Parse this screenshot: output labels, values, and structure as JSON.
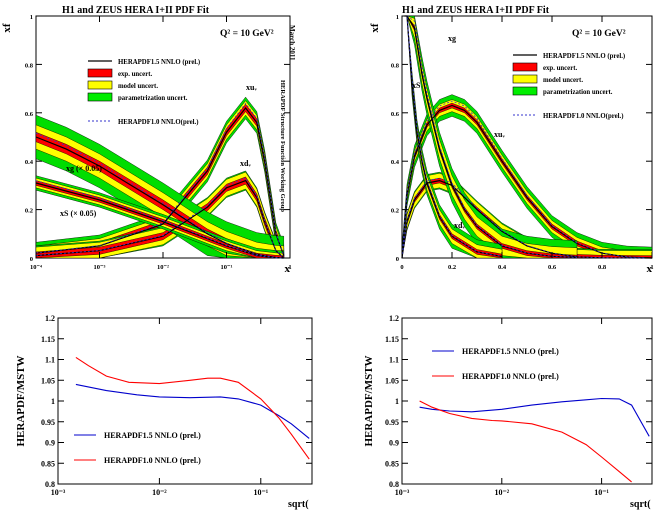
{
  "chart_data": [
    {
      "type": "line",
      "title": "H1 and ZEUS HERA I+II PDF Fit",
      "q2_label": "Q² = 10 GeV²",
      "side_label": "March 2011",
      "vertical_note": "HERAPDF Structure Function Working Group",
      "xlabel": "x",
      "ylabel": "xf",
      "xscale": "log",
      "xlim": [
        0.0001,
        1
      ],
      "ylim": [
        0,
        1
      ],
      "xticks": [
        {
          "v": 0.0001,
          "label": "10⁻⁴"
        },
        {
          "v": 0.001,
          "label": "10⁻³"
        },
        {
          "v": 0.01,
          "label": "10⁻²"
        },
        {
          "v": 0.1,
          "label": "10⁻¹"
        },
        {
          "v": 1,
          "label": "1"
        }
      ],
      "yticks": [
        {
          "v": 0,
          "label": "0"
        },
        {
          "v": 0.2,
          "label": "0.2"
        },
        {
          "v": 0.4,
          "label": "0.4"
        },
        {
          "v": 0.6,
          "label": "0.6"
        },
        {
          "v": 0.8,
          "label": "0.8"
        },
        {
          "v": 1,
          "label": "1"
        }
      ],
      "legend": [
        "HERAPDF1.5 NNLO (prel.)",
        "exp. uncert.",
        "model uncert.",
        "parametrization uncert.",
        "HERAPDF1.0 NNLO(prel.)"
      ],
      "legend_colors": [
        "#000000",
        "#ff0000",
        "#ffff00",
        "#00ee00",
        "#3333cc"
      ],
      "series": [
        {
          "name": "xu_v",
          "label": "xuᵥ",
          "x": [
            0.0001,
            0.001,
            0.01,
            0.05,
            0.1,
            0.2,
            0.3,
            0.4,
            0.6,
            0.8
          ],
          "values": [
            0.02,
            0.05,
            0.14,
            0.36,
            0.52,
            0.62,
            0.56,
            0.4,
            0.1,
            0.01
          ],
          "bands": [
            0.015,
            0.03,
            0.045
          ]
        },
        {
          "name": "xd_v",
          "label": "xdᵥ",
          "x": [
            0.0001,
            0.001,
            0.01,
            0.05,
            0.1,
            0.2,
            0.3,
            0.4,
            0.6,
            0.8
          ],
          "values": [
            0.01,
            0.03,
            0.09,
            0.21,
            0.29,
            0.32,
            0.25,
            0.15,
            0.03,
            0.0
          ],
          "bands": [
            0.015,
            0.035,
            0.04
          ]
        },
        {
          "name": "xg",
          "label": "xg (× 0.05)",
          "x": [
            0.0001,
            0.0003,
            0.001,
            0.01,
            0.05,
            0.1,
            0.3,
            0.6,
            0.8
          ],
          "values": [
            0.5,
            0.45,
            0.38,
            0.22,
            0.1,
            0.06,
            0.015,
            0.002,
            0.0
          ],
          "bands": [
            0.02,
            0.05,
            0.09
          ]
        },
        {
          "name": "xS",
          "label": "xS (× 0.05)",
          "x": [
            0.0001,
            0.001,
            0.01,
            0.05,
            0.1,
            0.3,
            0.6,
            0.8
          ],
          "values": [
            0.31,
            0.24,
            0.15,
            0.08,
            0.05,
            0.01,
            0.001,
            0.0
          ],
          "bands": [
            0.01,
            0.02,
            0.03
          ]
        }
      ]
    },
    {
      "type": "line",
      "title": "H1 and ZEUS HERA I+II PDF Fit",
      "q2_label": "Q² = 10 GeV²",
      "xlabel": "x",
      "ylabel": "xf",
      "xscale": "linear",
      "xlim": [
        0,
        1
      ],
      "ylim": [
        0,
        1
      ],
      "xticks": [
        {
          "v": 0,
          "label": "0"
        },
        {
          "v": 0.2,
          "label": "0.2"
        },
        {
          "v": 0.4,
          "label": "0.4"
        },
        {
          "v": 0.6,
          "label": "0.6"
        },
        {
          "v": 0.8,
          "label": "0.8"
        },
        {
          "v": 1,
          "label": "1"
        }
      ],
      "yticks": [
        {
          "v": 0,
          "label": "0"
        },
        {
          "v": 0.2,
          "label": "0.2"
        },
        {
          "v": 0.4,
          "label": "0.4"
        },
        {
          "v": 0.6,
          "label": "0.6"
        },
        {
          "v": 0.8,
          "label": "0.8"
        },
        {
          "v": 1,
          "label": "1"
        }
      ],
      "legend": [
        "HERAPDF1.5 NNLO (prel.)",
        "exp. uncert.",
        "model uncert.",
        "parametrization uncert.",
        "HERAPDF1.0 NNLO(prel.)"
      ],
      "legend_colors": [
        "#000000",
        "#ff0000",
        "#ffff00",
        "#00ee00",
        "#3333cc"
      ],
      "series": [
        {
          "name": "xu_v",
          "label": "xuᵥ",
          "x": [
            0.0,
            0.02,
            0.05,
            0.1,
            0.15,
            0.2,
            0.25,
            0.3,
            0.4,
            0.5,
            0.6,
            0.7,
            0.8,
            0.9,
            1.0
          ],
          "values": [
            0.0,
            0.26,
            0.42,
            0.55,
            0.61,
            0.63,
            0.61,
            0.56,
            0.4,
            0.25,
            0.13,
            0.06,
            0.02,
            0.004,
            0.0
          ],
          "bands": [
            0.01,
            0.025,
            0.045
          ]
        },
        {
          "name": "xd_v",
          "label": "xdᵥ",
          "x": [
            0.0,
            0.02,
            0.05,
            0.1,
            0.15,
            0.2,
            0.25,
            0.3,
            0.4,
            0.5,
            0.6,
            0.7,
            0.8,
            1.0
          ],
          "values": [
            0.0,
            0.15,
            0.24,
            0.31,
            0.32,
            0.3,
            0.25,
            0.2,
            0.11,
            0.05,
            0.02,
            0.005,
            0.001,
            0.0
          ],
          "bands": [
            0.01,
            0.03,
            0.035
          ]
        },
        {
          "name": "xg",
          "label": "xg",
          "x": [
            0.02,
            0.05,
            0.08,
            0.1,
            0.15,
            0.2,
            0.25,
            0.3,
            0.4,
            0.5,
            0.6,
            0.7
          ],
          "values": [
            1.3,
            0.95,
            0.76,
            0.66,
            0.45,
            0.3,
            0.2,
            0.13,
            0.05,
            0.02,
            0.007,
            0.002
          ],
          "bands": [
            0.01,
            0.04,
            0.07
          ]
        },
        {
          "name": "xS",
          "label": "xS",
          "x": [
            0.01,
            0.02,
            0.04,
            0.06,
            0.08,
            0.1,
            0.15,
            0.2,
            0.3,
            0.4
          ],
          "values": [
            1.6,
            1.1,
            0.72,
            0.52,
            0.4,
            0.31,
            0.17,
            0.09,
            0.025,
            0.006
          ],
          "bands": [
            0.01,
            0.03,
            0.05
          ]
        }
      ]
    },
    {
      "type": "line",
      "ylabel": "HERAPDF/MSTW",
      "xlabel": "sqrt(",
      "xscale": "log",
      "xlim": [
        0.001,
        0.32
      ],
      "ylim": [
        0.8,
        1.2
      ],
      "xticks": [
        {
          "v": 0.001,
          "label": "10⁻³"
        },
        {
          "v": 0.01,
          "label": "10⁻²"
        },
        {
          "v": 0.1,
          "label": "10⁻¹"
        }
      ],
      "yticks": [
        {
          "v": 0.8,
          "label": "0.8"
        },
        {
          "v": 0.85,
          "label": "0.85"
        },
        {
          "v": 0.9,
          "label": "0.9"
        },
        {
          "v": 0.95,
          "label": "0.95"
        },
        {
          "v": 1.0,
          "label": "1"
        },
        {
          "v": 1.05,
          "label": "1.05"
        },
        {
          "v": 1.1,
          "label": "1.1"
        },
        {
          "v": 1.15,
          "label": "1.15"
        },
        {
          "v": 1.2,
          "label": "1.2"
        }
      ],
      "series": [
        {
          "name": "HERAPDF1.5 NNLO (prel.)",
          "color": "#0000cc",
          "x": [
            0.0015,
            0.003,
            0.006,
            0.01,
            0.02,
            0.04,
            0.06,
            0.1,
            0.15,
            0.2,
            0.3
          ],
          "values": [
            1.04,
            1.025,
            1.015,
            1.01,
            1.008,
            1.01,
            1.005,
            0.99,
            0.965,
            0.945,
            0.91
          ]
        },
        {
          "name": "HERAPDF1.0 NNLO (prel.)",
          "color": "#ff0000",
          "x": [
            0.0015,
            0.002,
            0.003,
            0.005,
            0.01,
            0.02,
            0.03,
            0.04,
            0.06,
            0.1,
            0.15,
            0.2,
            0.3
          ],
          "values": [
            1.105,
            1.085,
            1.06,
            1.045,
            1.042,
            1.05,
            1.055,
            1.055,
            1.045,
            1.005,
            0.96,
            0.92,
            0.86
          ]
        }
      ]
    },
    {
      "type": "line",
      "ylabel": "HERAPDF/MSTW",
      "xlabel": "sqrt(",
      "xscale": "log",
      "xlim": [
        0.001,
        0.32
      ],
      "ylim": [
        0.8,
        1.2
      ],
      "xticks": [
        {
          "v": 0.001,
          "label": "10⁻³"
        },
        {
          "v": 0.01,
          "label": "10⁻²"
        },
        {
          "v": 0.1,
          "label": "10⁻¹"
        }
      ],
      "yticks": [
        {
          "v": 0.8,
          "label": "0.8"
        },
        {
          "v": 0.85,
          "label": "0.85"
        },
        {
          "v": 0.9,
          "label": "0.9"
        },
        {
          "v": 0.95,
          "label": "0.95"
        },
        {
          "v": 1.0,
          "label": "1"
        },
        {
          "v": 1.05,
          "label": "1.05"
        },
        {
          "v": 1.1,
          "label": "1.1"
        },
        {
          "v": 1.15,
          "label": "1.15"
        },
        {
          "v": 1.2,
          "label": "1.2"
        }
      ],
      "series": [
        {
          "name": "HERAPDF1.5 NNLO (prel.)",
          "color": "#0000cc",
          "x": [
            0.0015,
            0.002,
            0.003,
            0.005,
            0.01,
            0.02,
            0.04,
            0.07,
            0.1,
            0.15,
            0.2,
            0.3
          ],
          "values": [
            0.985,
            0.98,
            0.976,
            0.974,
            0.98,
            0.99,
            0.998,
            1.003,
            1.006,
            1.005,
            0.99,
            0.915
          ]
        },
        {
          "name": "HERAPDF1.0 NNLO (prel.)",
          "color": "#ff0000",
          "x": [
            0.0015,
            0.002,
            0.003,
            0.005,
            0.008,
            0.01,
            0.02,
            0.04,
            0.07,
            0.1,
            0.15,
            0.2
          ],
          "values": [
            1.0,
            0.985,
            0.97,
            0.958,
            0.953,
            0.952,
            0.945,
            0.925,
            0.895,
            0.865,
            0.83,
            0.805
          ]
        }
      ]
    }
  ]
}
